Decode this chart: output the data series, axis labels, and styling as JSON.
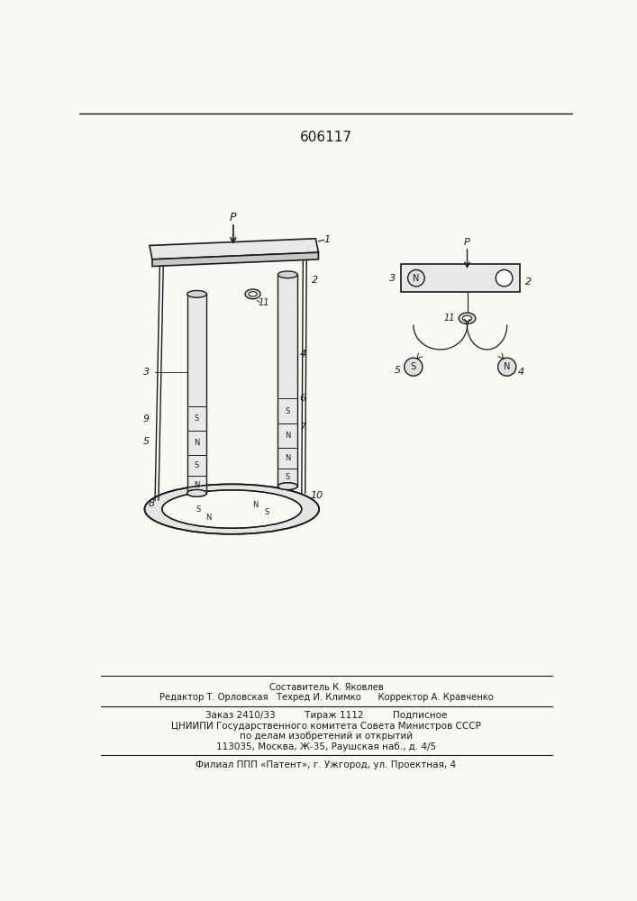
{
  "title": "606117",
  "bg_color": "#f8f8f4",
  "line_color": "#1a1a1a",
  "footer_lines": [
    "Составитель К. Яковлев",
    "Редактор Т. Орловская   Техред И. Климко      Корректор А. Кравченко",
    "Заказ 2410/33          Тираж 1112          Подписное",
    "ЦНИИПИ Государственного комитета Совета Министров СССР",
    "по делам изобретений и открытий",
    "113035, Москва, Ж-35, Раушская наб., д. 4/5",
    "Филиал ППП «Патент», г. Ужгород, ул. Проектная, 4"
  ]
}
